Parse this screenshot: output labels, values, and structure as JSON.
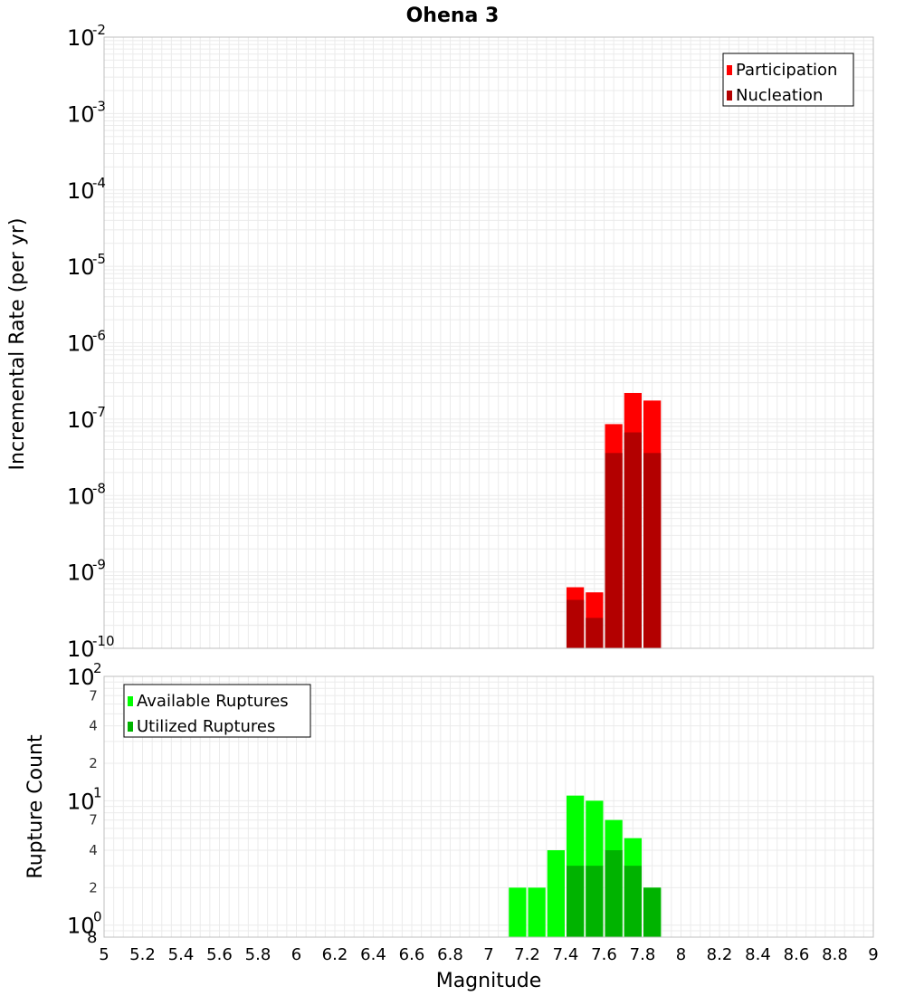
{
  "colors": {
    "participation": "#ff0000",
    "nucleation": "#b30000",
    "available": "#00ff00",
    "utilized": "#00b300",
    "grid": "#ebebeb",
    "frame": "#bfbfbf"
  },
  "chart_data": [
    {
      "type": "bar",
      "id": "rate-chart",
      "title": "Ohena 3",
      "xlabel": "",
      "ylabel": "Incremental Rate (per yr)",
      "scale": "log",
      "ylim": [
        1e-10,
        0.01
      ],
      "xlim": [
        5,
        9
      ],
      "y_tick_base": "10",
      "y_ticks": [
        {
          "value": 0.01,
          "exp": "-2"
        },
        {
          "value": 0.001,
          "exp": "-3"
        },
        {
          "value": 0.0001,
          "exp": "-4"
        },
        {
          "value": 1e-05,
          "exp": "-5"
        },
        {
          "value": 1e-06,
          "exp": "-6"
        },
        {
          "value": 1e-07,
          "exp": "-7"
        },
        {
          "value": 1e-08,
          "exp": "-8"
        },
        {
          "value": 1e-09,
          "exp": "-9"
        },
        {
          "value": 1e-10,
          "exp": "-10"
        }
      ],
      "legend": {
        "position": "top-right"
      },
      "series": [
        {
          "name": "Participation",
          "color_key": "participation",
          "x": [
            7.45,
            7.55,
            7.65,
            7.75,
            7.85
          ],
          "values": [
            6.3e-10,
            5.4e-10,
            8.6e-08,
            2.2e-07,
            1.75e-07
          ]
        },
        {
          "name": "Nucleation",
          "color_key": "nucleation",
          "x": [
            7.45,
            7.55,
            7.65,
            7.75,
            7.85
          ],
          "values": [
            4.3e-10,
            2.5e-10,
            3.6e-08,
            6.7e-08,
            3.6e-08
          ]
        }
      ]
    },
    {
      "type": "bar",
      "id": "count-chart",
      "title": "",
      "xlabel": "Magnitude",
      "ylabel": "Rupture Count",
      "scale": "log",
      "ylim": [
        0.8,
        100
      ],
      "xlim": [
        5,
        9
      ],
      "x_ticks": [
        "5",
        "5.2",
        "5.4",
        "5.6",
        "5.8",
        "6",
        "6.2",
        "6.4",
        "6.6",
        "6.8",
        "7",
        "7.2",
        "7.4",
        "7.6",
        "7.8",
        "8",
        "8.2",
        "8.4",
        "8.6",
        "8.8",
        "9"
      ],
      "y_major_ticks": [
        {
          "value": 100,
          "exp": "2"
        },
        {
          "value": 10,
          "exp": "1"
        },
        {
          "value": 1,
          "exp": "0"
        }
      ],
      "y_tick_base": "10",
      "y_minor_ticks": [
        {
          "value": 70,
          "label": "7"
        },
        {
          "value": 40,
          "label": "4"
        },
        {
          "value": 20,
          "label": "2"
        },
        {
          "value": 7,
          "label": "7"
        },
        {
          "value": 4,
          "label": "4"
        },
        {
          "value": 2,
          "label": "2"
        }
      ],
      "y_bottom_label": "8",
      "legend": {
        "position": "top-left"
      },
      "series": [
        {
          "name": "Available Ruptures",
          "color_key": "available",
          "x": [
            7.15,
            7.25,
            7.35,
            7.45,
            7.55,
            7.65,
            7.75,
            7.85
          ],
          "values": [
            2,
            2,
            4,
            11,
            10,
            7,
            5,
            2
          ]
        },
        {
          "name": "Utilized Ruptures",
          "color_key": "utilized",
          "x": [
            7.15,
            7.25,
            7.35,
            7.45,
            7.55,
            7.65,
            7.75,
            7.85
          ],
          "values": [
            0,
            0,
            0,
            3,
            3,
            4,
            3,
            2
          ]
        }
      ]
    }
  ]
}
